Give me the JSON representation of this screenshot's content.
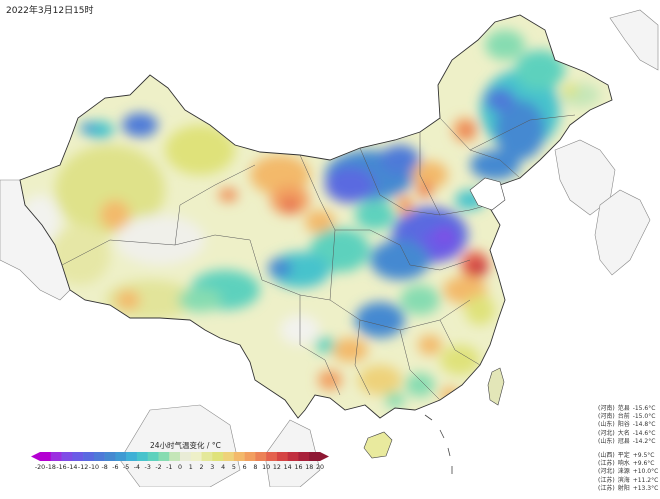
{
  "header": {
    "timestamp": "2022年3月12日15时"
  },
  "legend": {
    "title": "24小时气温变化 / °C",
    "ticks": [
      "-20",
      "-18",
      "-16",
      "-14",
      "-12",
      "-10",
      "-8",
      "-6",
      "-5",
      "-4",
      "-3",
      "-2",
      "-1",
      "0",
      "1",
      "2",
      "3",
      "4",
      "5",
      "6",
      "8",
      "10",
      "12",
      "14",
      "16",
      "18",
      "20"
    ],
    "colors": [
      "#b400d2",
      "#9b2fe0",
      "#7f4de6",
      "#6b5ce6",
      "#5a6ae0",
      "#4e7ad8",
      "#4589d1",
      "#3f9ad3",
      "#3fb0d6",
      "#47c3cc",
      "#5dd1bd",
      "#86dcb1",
      "#c4e6b8",
      "#e9ecd6",
      "#eef0c8",
      "#e4e89a",
      "#dfe27a",
      "#eed27a",
      "#f3b96b",
      "#f29f60",
      "#ec8257",
      "#e4624e",
      "#d54444",
      "#c12f3f",
      "#a8203a",
      "#8e1733"
    ]
  },
  "stations": {
    "drops": [
      {
        "prov": "(河南)",
        "name": "范县",
        "value": "-15.6°C"
      },
      {
        "prov": "(河南)",
        "name": "台前",
        "value": "-15.0°C"
      },
      {
        "prov": "(山东)",
        "name": "阳谷",
        "value": "-14.8°C"
      },
      {
        "prov": "(河北)",
        "name": "大名",
        "value": "-14.6°C"
      },
      {
        "prov": "(山东)",
        "name": "冠县",
        "value": "-14.2°C"
      }
    ],
    "rises": [
      {
        "prov": "(山西)",
        "name": "平定",
        "value": "+9.5°C"
      },
      {
        "prov": "(江苏)",
        "name": "响水",
        "value": "+9.6°C"
      },
      {
        "prov": "(河北)",
        "name": "涞源",
        "value": "+10.0°C"
      },
      {
        "prov": "(江苏)",
        "name": "滨海",
        "value": "+11.2°C"
      },
      {
        "prov": "(江苏)",
        "name": "射阳",
        "value": "+13.3°C"
      }
    ]
  }
}
